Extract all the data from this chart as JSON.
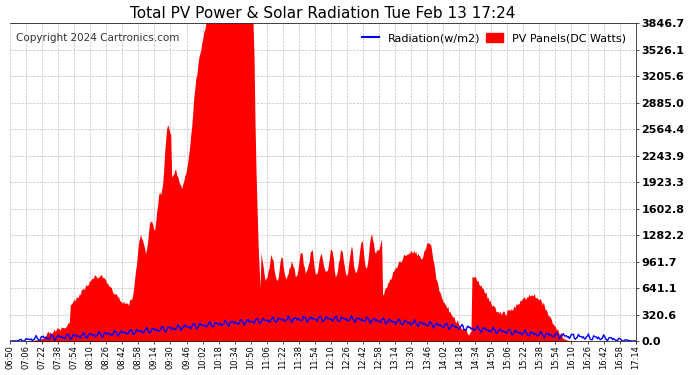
{
  "title": "Total PV Power & Solar Radiation Tue Feb 13 17:24",
  "copyright": "Copyright 2024 Cartronics.com",
  "legend_radiation": "Radiation(w/m2)",
  "legend_pv": "PV Panels(DC Watts)",
  "yticks": [
    0.0,
    320.6,
    641.1,
    961.7,
    1282.2,
    1602.8,
    1923.3,
    2243.9,
    2564.4,
    2885.0,
    3205.6,
    3526.1,
    3846.7
  ],
  "xtick_labels": [
    "06:50",
    "07:06",
    "07:22",
    "07:38",
    "07:54",
    "08:10",
    "08:26",
    "08:42",
    "08:58",
    "09:14",
    "09:30",
    "09:46",
    "10:02",
    "10:18",
    "10:34",
    "10:50",
    "11:06",
    "11:22",
    "11:38",
    "11:54",
    "12:10",
    "12:26",
    "12:42",
    "12:58",
    "13:14",
    "13:30",
    "13:46",
    "14:02",
    "14:18",
    "14:34",
    "14:50",
    "15:06",
    "15:22",
    "15:38",
    "15:54",
    "16:10",
    "16:26",
    "16:42",
    "16:58",
    "17:14"
  ],
  "ymax": 3846.7,
  "ymin": 0.0,
  "bg_color": "#ffffff",
  "grid_color": "#bbbbbb",
  "fill_color": "#ff0000",
  "line_color": "#0000ff",
  "title_color": "#000000",
  "radiation_color": "#0000ff",
  "pv_color": "#ff0000",
  "title_fontsize": 11,
  "copyright_fontsize": 7.5,
  "legend_fontsize": 8,
  "ytick_fontsize": 8,
  "xtick_fontsize": 6
}
